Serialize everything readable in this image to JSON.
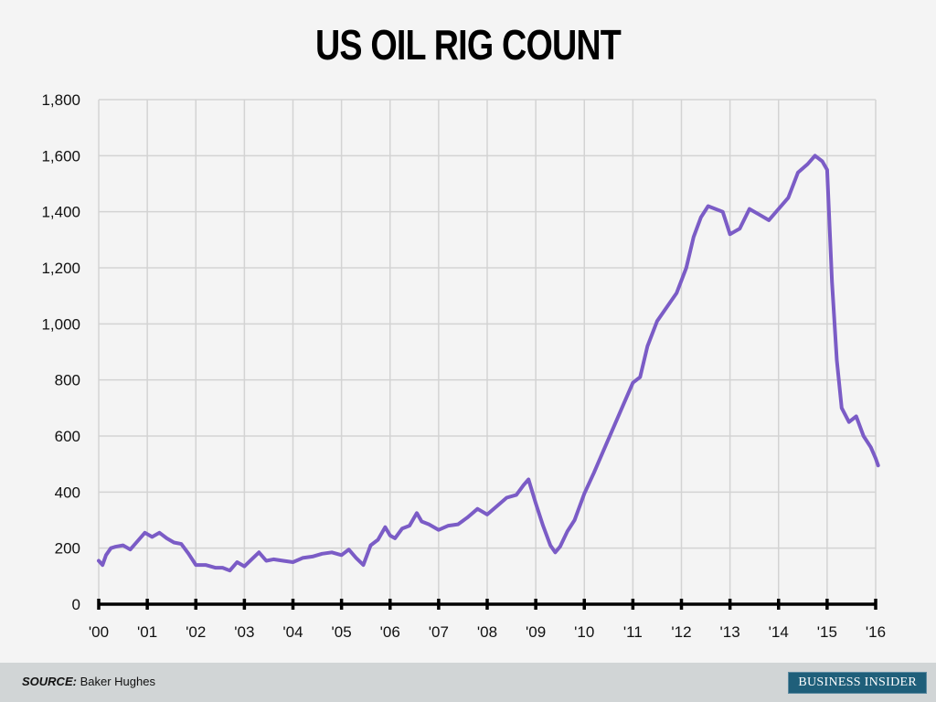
{
  "title": "US OIL RIG COUNT",
  "footer": {
    "source_label": "SOURCE:",
    "source_value": "Baker Hughes",
    "brand": "BUSINESS INSIDER"
  },
  "colors": {
    "background": "#f4f4f4",
    "line": "#7b5cc6",
    "grid": "#d3d3d3",
    "axis": "#000000",
    "footer_bg": "#d1d5d6",
    "brand_bg": "#1f5f7a"
  },
  "chart_data": {
    "type": "line",
    "title": "US OIL RIG COUNT",
    "xlabel": "",
    "ylabel": "",
    "ylim": [
      0,
      1800
    ],
    "xlim": [
      2000,
      2016.05
    ],
    "grid": true,
    "legend": null,
    "y_ticks": [
      0,
      200,
      400,
      600,
      800,
      1000,
      1200,
      1400,
      1600,
      1800
    ],
    "y_tick_labels": [
      "0",
      "200",
      "400",
      "600",
      "800",
      "1,000",
      "1,200",
      "1,400",
      "1,600",
      "1,800"
    ],
    "x_ticks": [
      2000,
      2001,
      2002,
      2003,
      2004,
      2005,
      2006,
      2007,
      2008,
      2009,
      2010,
      2011,
      2012,
      2013,
      2014,
      2015,
      2016
    ],
    "x_tick_labels": [
      "'00",
      "'01",
      "'02",
      "'03",
      "'04",
      "'05",
      "'06",
      "'07",
      "'08",
      "'09",
      "'10",
      "'11",
      "'12",
      "'13",
      "'14",
      "'15",
      "'16"
    ],
    "series": [
      {
        "name": "US oil rig count",
        "x": [
          2000.0,
          2000.08,
          2000.15,
          2000.25,
          2000.35,
          2000.5,
          2000.65,
          2000.8,
          2000.95,
          2001.1,
          2001.25,
          2001.4,
          2001.55,
          2001.7,
          2001.85,
          2002.0,
          2002.2,
          2002.4,
          2002.55,
          2002.7,
          2002.85,
          2003.0,
          2003.15,
          2003.3,
          2003.45,
          2003.6,
          2003.8,
          2004.0,
          2004.2,
          2004.4,
          2004.6,
          2004.8,
          2005.0,
          2005.15,
          2005.3,
          2005.45,
          2005.6,
          2005.75,
          2005.9,
          2006.0,
          2006.1,
          2006.25,
          2006.4,
          2006.55,
          2006.65,
          2006.8,
          2007.0,
          2007.2,
          2007.4,
          2007.6,
          2007.8,
          2008.0,
          2008.2,
          2008.4,
          2008.6,
          2008.75,
          2008.85,
          2009.0,
          2009.15,
          2009.3,
          2009.4,
          2009.5,
          2009.65,
          2009.8,
          2010.0,
          2010.2,
          2010.4,
          2010.6,
          2010.8,
          2011.0,
          2011.15,
          2011.3,
          2011.5,
          2011.7,
          2011.9,
          2012.1,
          2012.25,
          2012.4,
          2012.55,
          2012.7,
          2012.85,
          2013.0,
          2013.2,
          2013.4,
          2013.6,
          2013.8,
          2014.0,
          2014.2,
          2014.4,
          2014.6,
          2014.75,
          2014.9,
          2015.0,
          2015.1,
          2015.2,
          2015.3,
          2015.45,
          2015.6,
          2015.75,
          2015.9,
          2016.0,
          2016.05
        ],
        "values": [
          155,
          140,
          175,
          200,
          205,
          210,
          195,
          225,
          255,
          240,
          255,
          235,
          220,
          215,
          180,
          140,
          140,
          130,
          130,
          120,
          150,
          135,
          160,
          185,
          155,
          160,
          155,
          150,
          165,
          170,
          180,
          185,
          175,
          195,
          165,
          140,
          210,
          230,
          275,
          245,
          235,
          270,
          280,
          325,
          295,
          285,
          265,
          280,
          285,
          310,
          340,
          320,
          350,
          380,
          390,
          425,
          445,
          360,
          280,
          210,
          185,
          205,
          260,
          300,
          395,
          470,
          550,
          630,
          710,
          790,
          810,
          920,
          1010,
          1060,
          1110,
          1200,
          1310,
          1380,
          1420,
          1410,
          1400,
          1320,
          1340,
          1410,
          1390,
          1370,
          1410,
          1450,
          1540,
          1570,
          1600,
          1580,
          1550,
          1150,
          870,
          700,
          650,
          670,
          600,
          560,
          520,
          495
        ]
      }
    ]
  }
}
